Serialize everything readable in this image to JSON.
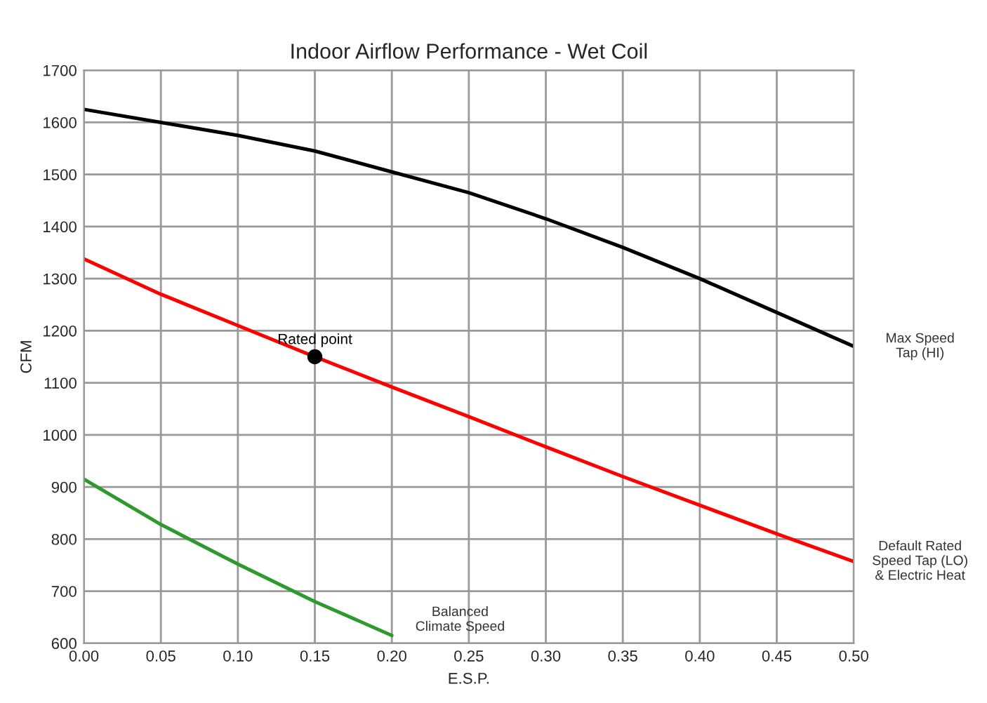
{
  "chart_data": {
    "type": "line",
    "title": "Indoor Airflow Performance - Wet Coil",
    "xlabel": "E.S.P.",
    "ylabel": "CFM",
    "x": [
      0,
      0.05,
      0.1,
      0.15,
      0.2,
      0.25,
      0.3,
      0.35,
      0.4,
      0.45,
      0.5
    ],
    "series": [
      {
        "name": "Max Speed\nTap (HI)",
        "color": "#000000",
        "values": [
          1625,
          1600,
          1575,
          1545,
          1505,
          1465,
          1415,
          1360,
          1300,
          1235,
          1170
        ]
      },
      {
        "name": "Default Rated\nSpeed Tap (LO)\n& Electric Heat",
        "color": "#ff0000",
        "values": [
          1338,
          1270,
          1210,
          1150,
          1092,
          1035,
          977,
          920,
          865,
          810,
          757
        ]
      },
      {
        "name": "Balanced\nClimate Speed",
        "color": "#2e9a2e",
        "x": [
          0,
          0.05,
          0.1,
          0.15,
          0.2
        ],
        "values": [
          915,
          828,
          752,
          680,
          615
        ]
      },
      {
        "name": "Rated point",
        "type": "scatter",
        "marker": "circle",
        "color": "#000000",
        "x": [
          0.15
        ],
        "values": [
          1150
        ]
      }
    ],
    "xlim": [
      0,
      0.5
    ],
    "xticks": [
      {
        "value": 0,
        "label": "0.00"
      },
      {
        "value": 0.05,
        "label": "0.05"
      },
      {
        "value": 0.1,
        "label": "0.10"
      },
      {
        "value": 0.15,
        "label": "0.15"
      },
      {
        "value": 0.2,
        "label": "0.20"
      },
      {
        "value": 0.25,
        "label": "0.25"
      },
      {
        "value": 0.3,
        "label": "0.30"
      },
      {
        "value": 0.35,
        "label": "0.35"
      },
      {
        "value": 0.4,
        "label": "0.40"
      },
      {
        "value": 0.45,
        "label": "0.45"
      },
      {
        "value": 0.5,
        "label": "0.50"
      }
    ],
    "ylim": [
      600,
      1700
    ],
    "yticks": [
      600,
      700,
      800,
      900,
      1000,
      1100,
      1200,
      1300,
      1400,
      1500,
      1600,
      1700
    ],
    "grid": true,
    "marker": "none",
    "line_style": "solid"
  }
}
